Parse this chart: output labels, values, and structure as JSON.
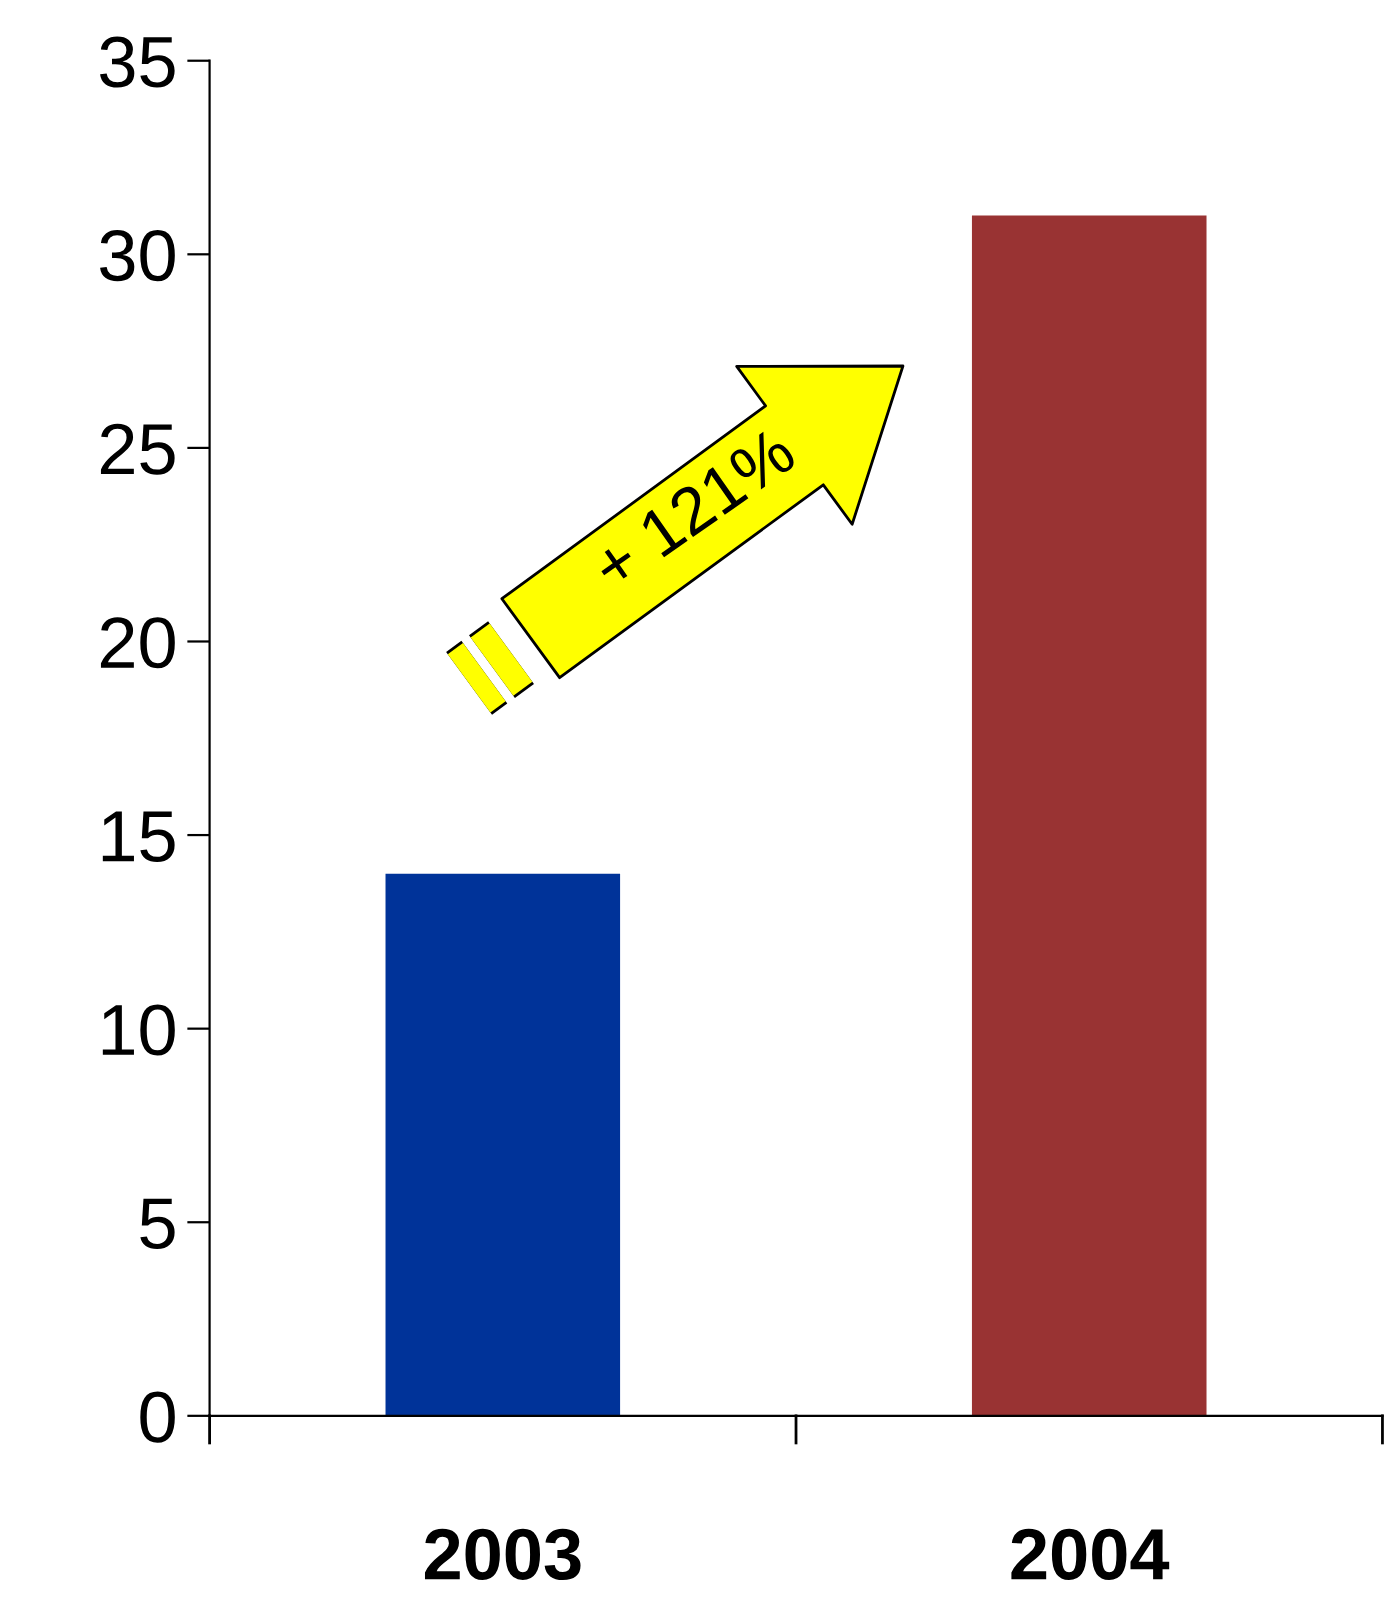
{
  "chart_data": {
    "type": "bar",
    "categories": [
      "2003",
      "2004"
    ],
    "values": [
      14,
      31
    ],
    "colors": [
      "#003399",
      "#993333"
    ],
    "ylim": [
      0,
      35
    ],
    "yticks": [
      0,
      5,
      10,
      15,
      20,
      25,
      30,
      35
    ],
    "grid": false,
    "legend": false,
    "annotations": [
      "+ 121%"
    ]
  }
}
